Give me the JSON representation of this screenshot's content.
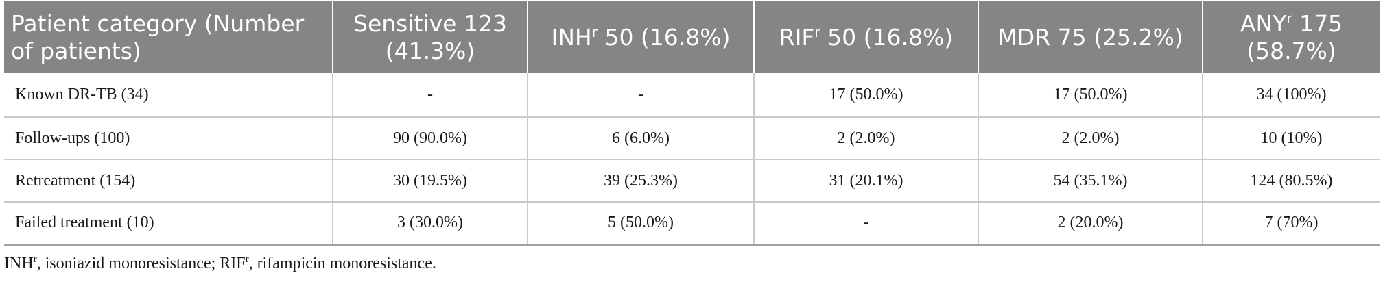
{
  "table": {
    "headers": [
      {
        "main": "Patient category (Number of patients)",
        "sup": "",
        "rest": ""
      },
      {
        "main": "Sensitive 123 (41.3%)",
        "sup": "",
        "rest": ""
      },
      {
        "main": "INH",
        "sup": "r",
        "rest": " 50 (16.8%)"
      },
      {
        "main": "RIF",
        "sup": "r",
        "rest": " 50 (16.8%)"
      },
      {
        "main": "MDR 75 (25.2%)",
        "sup": "",
        "rest": ""
      },
      {
        "main": "ANY",
        "sup": "r",
        "rest": " 175 (58.7%)"
      }
    ],
    "rows": [
      [
        "Known DR-TB (34)",
        "-",
        "-",
        "17 (50.0%)",
        "17 (50.0%)",
        "34 (100%)"
      ],
      [
        "Follow-ups (100)",
        "90 (90.0%)",
        "6 (6.0%)",
        "2 (2.0%)",
        "2 (2.0%)",
        "10 (10%)"
      ],
      [
        "Retreatment (154)",
        "30 (19.5%)",
        "39 (25.3%)",
        "31 (20.1%)",
        "54 (35.1%)",
        "124 (80.5%)"
      ],
      [
        "Failed treatment (10)",
        "3 (30.0%)",
        "5 (50.0%)",
        "-",
        "2 (20.0%)",
        "7 (70%)"
      ]
    ]
  },
  "footnote": {
    "part1": "INH",
    "sup1": "r",
    "part2": ", isoniazid monoresistance; RIF",
    "sup2": "r",
    "part3": ", rifampicin monoresistance."
  }
}
